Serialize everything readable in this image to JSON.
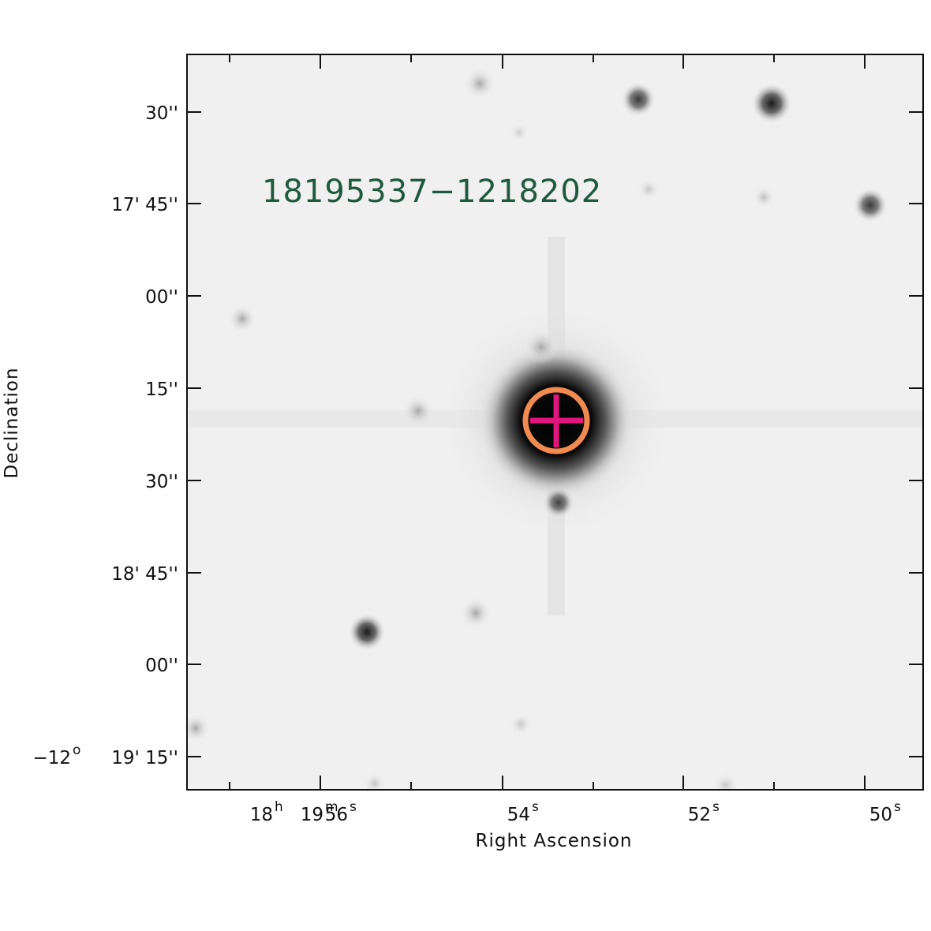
{
  "object_id": "18195337−1218202",
  "axes": {
    "xlabel": "Right Ascension",
    "ylabel": "Declination",
    "x_ticks": [
      {
        "label": "56",
        "unit": "s",
        "prefix": [
          {
            "t": "18",
            "s": "h"
          },
          {
            "t": "19",
            "s": "m"
          }
        ]
      },
      {
        "label": "54",
        "unit": "s"
      },
      {
        "label": "52",
        "unit": "s"
      },
      {
        "label": "50",
        "unit": "s"
      }
    ],
    "y_ticks": [
      {
        "label": "30''"
      },
      {
        "label": "17' 45''"
      },
      {
        "label": "00''"
      },
      {
        "label": "15''"
      },
      {
        "label": "30''"
      },
      {
        "label": "18' 45''"
      },
      {
        "label": "00''"
      },
      {
        "label": "19' 15''",
        "prefix": "−12",
        "prefix_sup": "o"
      }
    ]
  },
  "colors": {
    "background_sky": "#f0f0f0",
    "aperture_circle": "#f08a50",
    "crosshair": "#e0157d",
    "object_label": "#1f5a3e"
  },
  "markers": [
    "aperture-circle",
    "crosshair"
  ]
}
